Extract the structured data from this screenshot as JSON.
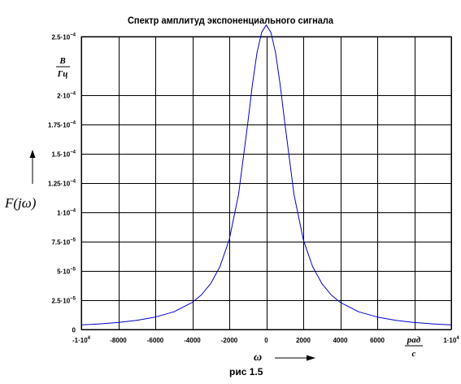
{
  "chart_data": {
    "type": "line",
    "title": "Спектр амплитуд экспоненциального сигнала",
    "caption": "рис 1.5",
    "xlabel": "ω",
    "ylabel": "F(jω)",
    "y_unit": {
      "num": "В",
      "den": "Гц"
    },
    "x_unit": {
      "num": "рад",
      "den": "с"
    },
    "xlim": [
      -10000,
      10000
    ],
    "ylim": [
      0,
      0.00025
    ],
    "x_ticks": [
      {
        "value": -10000,
        "label": "-1·10",
        "exp": "4"
      },
      {
        "value": -8000,
        "label": "-8000",
        "exp": ""
      },
      {
        "value": -6000,
        "label": "-6000",
        "exp": ""
      },
      {
        "value": -4000,
        "label": "-4000",
        "exp": ""
      },
      {
        "value": -2000,
        "label": "-2000",
        "exp": ""
      },
      {
        "value": 0,
        "label": "0",
        "exp": ""
      },
      {
        "value": 2000,
        "label": "2000",
        "exp": ""
      },
      {
        "value": 4000,
        "label": "4000",
        "exp": ""
      },
      {
        "value": 6000,
        "label": "6000",
        "exp": ""
      },
      {
        "value": 10000,
        "label": "1·10",
        "exp": "4"
      }
    ],
    "y_ticks": [
      {
        "value": 0,
        "label": "0",
        "exp": ""
      },
      {
        "value": 2.5e-05,
        "label": "2.5·10",
        "exp": "−5"
      },
      {
        "value": 5e-05,
        "label": "5·10",
        "exp": "−5"
      },
      {
        "value": 7.5e-05,
        "label": "7.5·10",
        "exp": "−5"
      },
      {
        "value": 0.0001,
        "label": "1·10",
        "exp": "−4"
      },
      {
        "value": 0.000125,
        "label": "1.25·10",
        "exp": "−4"
      },
      {
        "value": 0.00015,
        "label": "1.5·10",
        "exp": "−4"
      },
      {
        "value": 0.000175,
        "label": "1.75·10",
        "exp": "−4"
      },
      {
        "value": 0.0002,
        "label": "2·10",
        "exp": "−4"
      },
      {
        "value": 0.00025,
        "label": "2.5·10",
        "exp": "−4"
      }
    ],
    "grid": true,
    "series": [
      {
        "color": "#0000cc",
        "x": [
          -10000,
          -9000,
          -8000,
          -7000,
          -6000,
          -5000,
          -4000,
          -3500,
          -3000,
          -2500,
          -2000,
          -1500,
          -1000,
          -750,
          -500,
          -250,
          0,
          250,
          500,
          750,
          1000,
          1500,
          2000,
          2500,
          3000,
          3500,
          4000,
          5000,
          6000,
          7000,
          8000,
          9000,
          10000
        ],
        "y": [
          3.9e-06,
          4.8e-06,
          6e-06,
          7.8e-06,
          1.06e-05,
          1.51e-05,
          2.31e-05,
          2.97e-05,
          3.93e-05,
          5.38e-05,
          7.68e-05,
          0.0001152,
          0.0001763,
          0.0002089,
          0.0002363,
          0.0002536,
          0.00026,
          0.0002536,
          0.0002363,
          0.0002089,
          0.0001763,
          0.0001152,
          7.68e-05,
          5.38e-05,
          3.93e-05,
          2.97e-05,
          2.31e-05,
          1.51e-05,
          1.06e-05,
          7.8e-06,
          6e-06,
          4.8e-06,
          3.9e-06
        ]
      }
    ]
  }
}
